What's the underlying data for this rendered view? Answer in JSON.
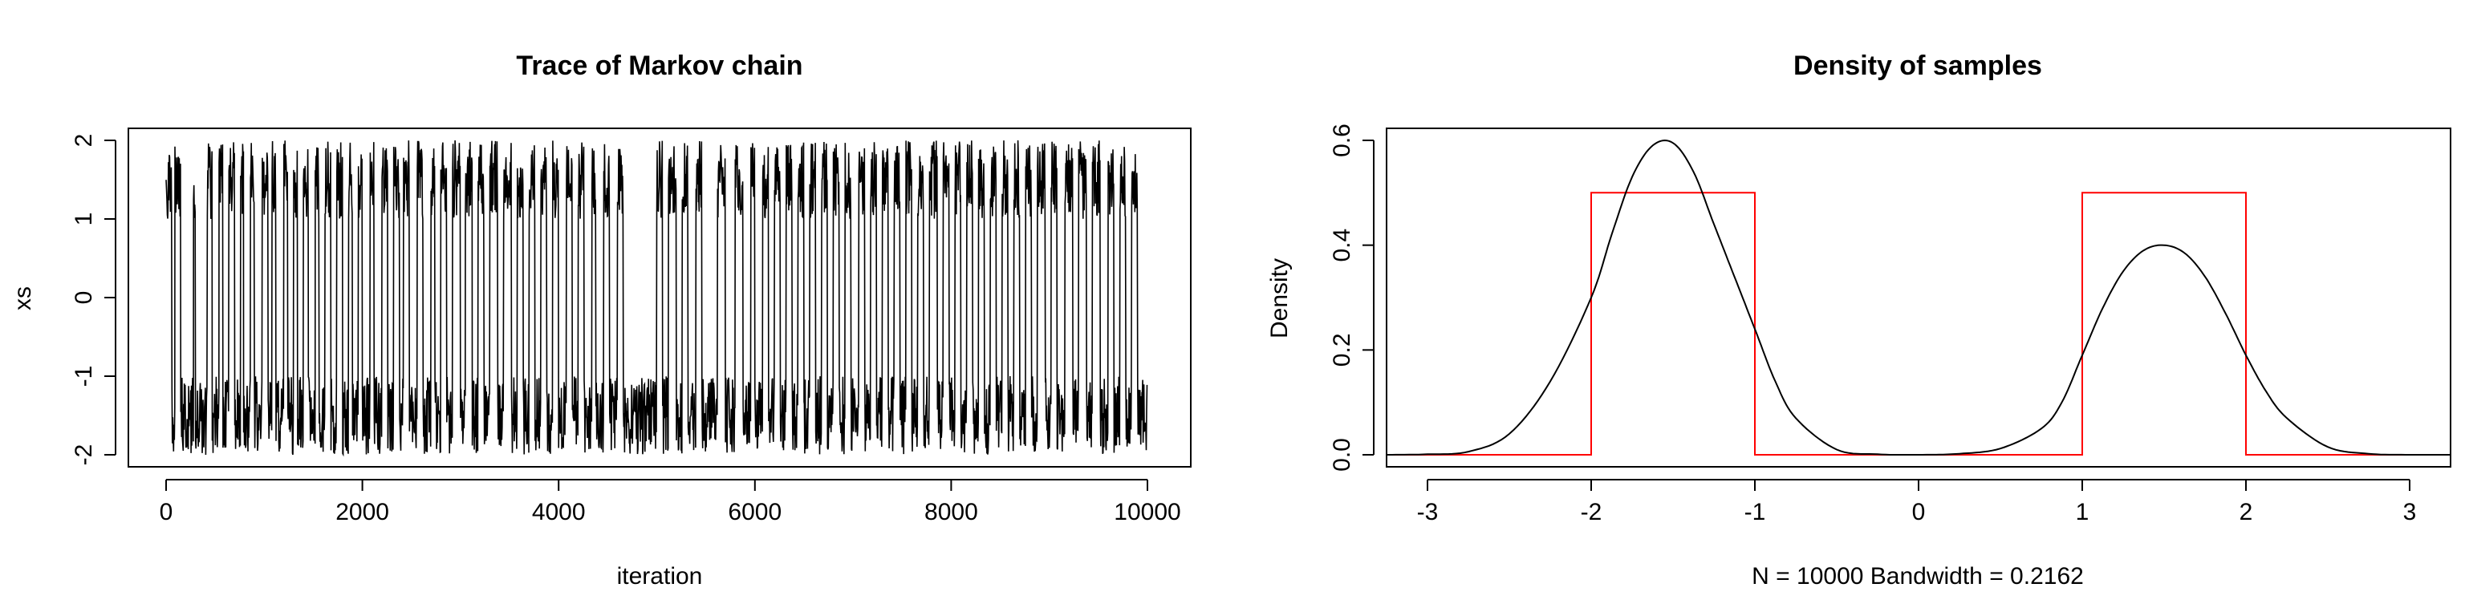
{
  "chart_data": [
    {
      "type": "line",
      "title": "Trace of Markov chain",
      "xlabel": "iteration",
      "ylabel": "xs",
      "xlim": [
        0,
        10000
      ],
      "ylim": [
        -2,
        2
      ],
      "x_ticks": [
        0,
        2000,
        4000,
        6000,
        8000,
        10000
      ],
      "x_tick_labels": [
        "0",
        "2000",
        "4000",
        "6000",
        "8000",
        "10000"
      ],
      "y_ticks": [
        -2,
        -1,
        0,
        1,
        2
      ],
      "y_tick_labels": [
        "-2",
        "-1",
        "0",
        "1",
        "2"
      ],
      "grid": false,
      "series": [
        {
          "color": "#000000",
          "mode_switches": [
            0,
            60,
            90,
            150,
            280,
            300,
            420,
            470,
            540,
            580,
            640,
            700,
            760,
            790,
            860,
            900,
            980,
            1040,
            1080,
            1120,
            1200,
            1240,
            1300,
            1340,
            1400,
            1450,
            1520,
            1560,
            1620,
            1680,
            1740,
            1800,
            1860,
            1900,
            1960,
            2000,
            2080,
            2120,
            2200,
            2260,
            2320,
            2380,
            2420,
            2480,
            2560,
            2620,
            2700,
            2740,
            2800,
            2860,
            2920,
            3000,
            3050,
            3120,
            3180,
            3240,
            3300,
            3380,
            3440,
            3520,
            3580,
            3640,
            3700,
            3760,
            3820,
            3880,
            3940,
            4000,
            4080,
            4140,
            4200,
            4260,
            4340,
            4380,
            4460,
            4520,
            4600,
            4660,
            5000,
            5060,
            5120,
            5200,
            5260,
            5320,
            5400,
            5460,
            5620,
            5700,
            5800,
            5880,
            5960,
            6000,
            6080,
            6140,
            6200,
            6260,
            6320,
            6380,
            6440,
            6500,
            6560,
            6620,
            6680,
            6740,
            6800,
            6860,
            6920,
            6980,
            7060,
            7120,
            7180,
            7240,
            7300,
            7360,
            7420,
            7480,
            7540,
            7600,
            7660,
            7720,
            7780,
            7860,
            7920,
            7980,
            8040,
            8100,
            8160,
            8220,
            8280,
            8340,
            8400,
            8460,
            8520,
            8580,
            8640,
            8700,
            8760,
            8820,
            8880,
            8960,
            9020,
            9080,
            9160,
            9240,
            9300,
            9380,
            9440,
            9520,
            9600,
            9660,
            9720,
            9780,
            9840,
            9900,
            10000
          ],
          "first_mode_sign": 1,
          "mode_range_positive": [
            1.0,
            2.0
          ],
          "mode_range_negative": [
            -2.0,
            -1.0
          ]
        }
      ]
    },
    {
      "type": "line",
      "title": "Density of samples",
      "xlabel": "N = 10000   Bandwidth = 0.2162",
      "ylabel": "Density",
      "xlim": [
        -3.25,
        3.25
      ],
      "ylim": [
        0,
        0.62
      ],
      "x_ticks": [
        -3,
        -2,
        -1,
        0,
        1,
        2,
        3
      ],
      "x_tick_labels": [
        "-3",
        "-2",
        "-1",
        "0",
        "1",
        "2",
        "3"
      ],
      "y_ticks": [
        0.0,
        0.2,
        0.4,
        0.6
      ],
      "y_tick_labels": [
        "0.0",
        "0.2",
        "0.4",
        "0.6"
      ],
      "grid": false,
      "series": [
        {
          "color": "#000000",
          "x": [
            -3.25,
            -3.0,
            -2.75,
            -2.5,
            -2.25,
            -2.0,
            -1.875,
            -1.75,
            -1.625,
            -1.5,
            -1.375,
            -1.25,
            -1.125,
            -1.0,
            -0.875,
            -0.75,
            -0.5,
            -0.25,
            0.0,
            0.25,
            0.5,
            0.75,
            0.875,
            1.0,
            1.125,
            1.25,
            1.375,
            1.5,
            1.625,
            1.75,
            1.875,
            2.0,
            2.125,
            2.25,
            2.5,
            2.75,
            3.0,
            3.25
          ],
          "y": [
            0.0,
            0.001,
            0.006,
            0.04,
            0.14,
            0.3,
            0.42,
            0.53,
            0.59,
            0.595,
            0.54,
            0.44,
            0.34,
            0.24,
            0.14,
            0.07,
            0.01,
            0.001,
            0.0,
            0.002,
            0.012,
            0.05,
            0.1,
            0.19,
            0.28,
            0.35,
            0.39,
            0.4,
            0.385,
            0.34,
            0.27,
            0.19,
            0.12,
            0.07,
            0.015,
            0.002,
            0.0,
            0.0
          ]
        },
        {
          "color": "#ff0000",
          "x": [
            -3.25,
            -2.0,
            -2.0,
            -1.0,
            -1.0,
            1.0,
            1.0,
            2.0,
            2.0,
            3.25
          ],
          "y": [
            0.0,
            0.0,
            0.5,
            0.5,
            0.0,
            0.0,
            0.5,
            0.5,
            0.0,
            0.0
          ]
        }
      ]
    }
  ]
}
